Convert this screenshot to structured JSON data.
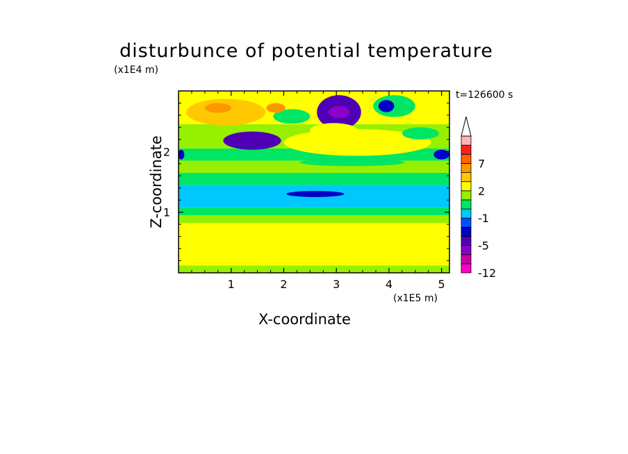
{
  "chart_data": {
    "type": "heatmap",
    "title": "disturbunce of potential temperature",
    "xlabel": "X-coordinate",
    "ylabel": "Z-coordinate",
    "x_multiplier": "(x1E5 m)",
    "y_multiplier": "(x1E4 m)",
    "time_label": "t=126600 s",
    "xlim": [
      0,
      5.15
    ],
    "ylim": [
      0,
      3.0
    ],
    "x_ticks": [
      1,
      2,
      3,
      4,
      5
    ],
    "y_ticks": [
      1,
      2
    ],
    "colorbar": {
      "levels": [
        -12,
        -9,
        -7,
        -5,
        -3,
        -2,
        -1,
        0,
        1,
        2,
        3,
        5,
        7,
        9,
        12
      ],
      "labels": [
        "-12",
        "-5",
        "-1",
        "2",
        "7"
      ],
      "colors": [
        "#ff00c8",
        "#c800a0",
        "#8c00c8",
        "#5000b4",
        "#0000c8",
        "#0050ff",
        "#00c8ff",
        "#00e664",
        "#96f000",
        "#ffff00",
        "#ffc800",
        "#ff9600",
        "#ff6400",
        "#ff1e1e",
        "#ffb4b4"
      ],
      "extend": "max"
    },
    "layers": [
      {
        "z_range": [
          0.0,
          0.12
        ],
        "value": 1.5
      },
      {
        "z_range": [
          0.12,
          0.28
        ],
        "value": 2.2
      },
      {
        "z_range": [
          0.28,
          0.62
        ],
        "value": 2.7
      },
      {
        "z_range": [
          0.62,
          0.82
        ],
        "value": 2.2
      },
      {
        "z_range": [
          0.82,
          0.95
        ],
        "value": 1.5
      },
      {
        "z_range": [
          0.95,
          1.08
        ],
        "value": 0.5
      },
      {
        "z_range": [
          1.08,
          1.45
        ],
        "value": -0.5
      },
      {
        "z_range": [
          1.45,
          1.65
        ],
        "value": 0.5
      },
      {
        "z_range": [
          1.65,
          1.85
        ],
        "value": 1.5
      },
      {
        "z_range": [
          1.85,
          2.05
        ],
        "value": 0.5
      },
      {
        "z_range": [
          2.05,
          2.45
        ],
        "value": 1.5
      },
      {
        "z_range": [
          2.45,
          3.0
        ],
        "value": 2.4
      }
    ],
    "features": [
      {
        "x": 3.05,
        "z": 2.65,
        "rx": 0.42,
        "rz": 0.28,
        "value": -4
      },
      {
        "x": 3.05,
        "z": 2.65,
        "rx": 0.2,
        "rz": 0.1,
        "value": -6
      },
      {
        "x": 1.4,
        "z": 2.18,
        "rx": 0.55,
        "rz": 0.15,
        "value": -3.5
      },
      {
        "x": 2.15,
        "z": 2.58,
        "rx": 0.35,
        "rz": 0.12,
        "value": 0.5
      },
      {
        "x": 4.1,
        "z": 2.75,
        "rx": 0.4,
        "rz": 0.18,
        "value": 0.5
      },
      {
        "x": 3.95,
        "z": 2.75,
        "rx": 0.15,
        "rz": 0.1,
        "value": -3
      },
      {
        "x": 5.0,
        "z": 1.95,
        "rx": 0.15,
        "rz": 0.08,
        "value": -3
      },
      {
        "x": 0.05,
        "z": 1.95,
        "rx": 0.06,
        "rz": 0.08,
        "value": -3
      },
      {
        "x": 3.4,
        "z": 2.15,
        "rx": 1.4,
        "rz": 0.22,
        "value": 2.6
      },
      {
        "x": 2.95,
        "z": 2.35,
        "rx": 0.45,
        "rz": 0.12,
        "value": 2.6
      },
      {
        "x": 2.6,
        "z": 1.3,
        "rx": 0.55,
        "rz": 0.05,
        "value": -3
      },
      {
        "x": 0.9,
        "z": 2.65,
        "rx": 0.75,
        "rz": 0.22,
        "value": 3.5
      },
      {
        "x": 0.75,
        "z": 2.72,
        "rx": 0.25,
        "rz": 0.08,
        "value": 5.5
      },
      {
        "x": 1.85,
        "z": 2.72,
        "rx": 0.18,
        "rz": 0.08,
        "value": 5.5
      },
      {
        "x": 3.3,
        "z": 1.82,
        "rx": 1.0,
        "rz": 0.06,
        "value": 0.5
      },
      {
        "x": 4.6,
        "z": 2.3,
        "rx": 0.35,
        "rz": 0.1,
        "value": 0.5
      }
    ]
  }
}
